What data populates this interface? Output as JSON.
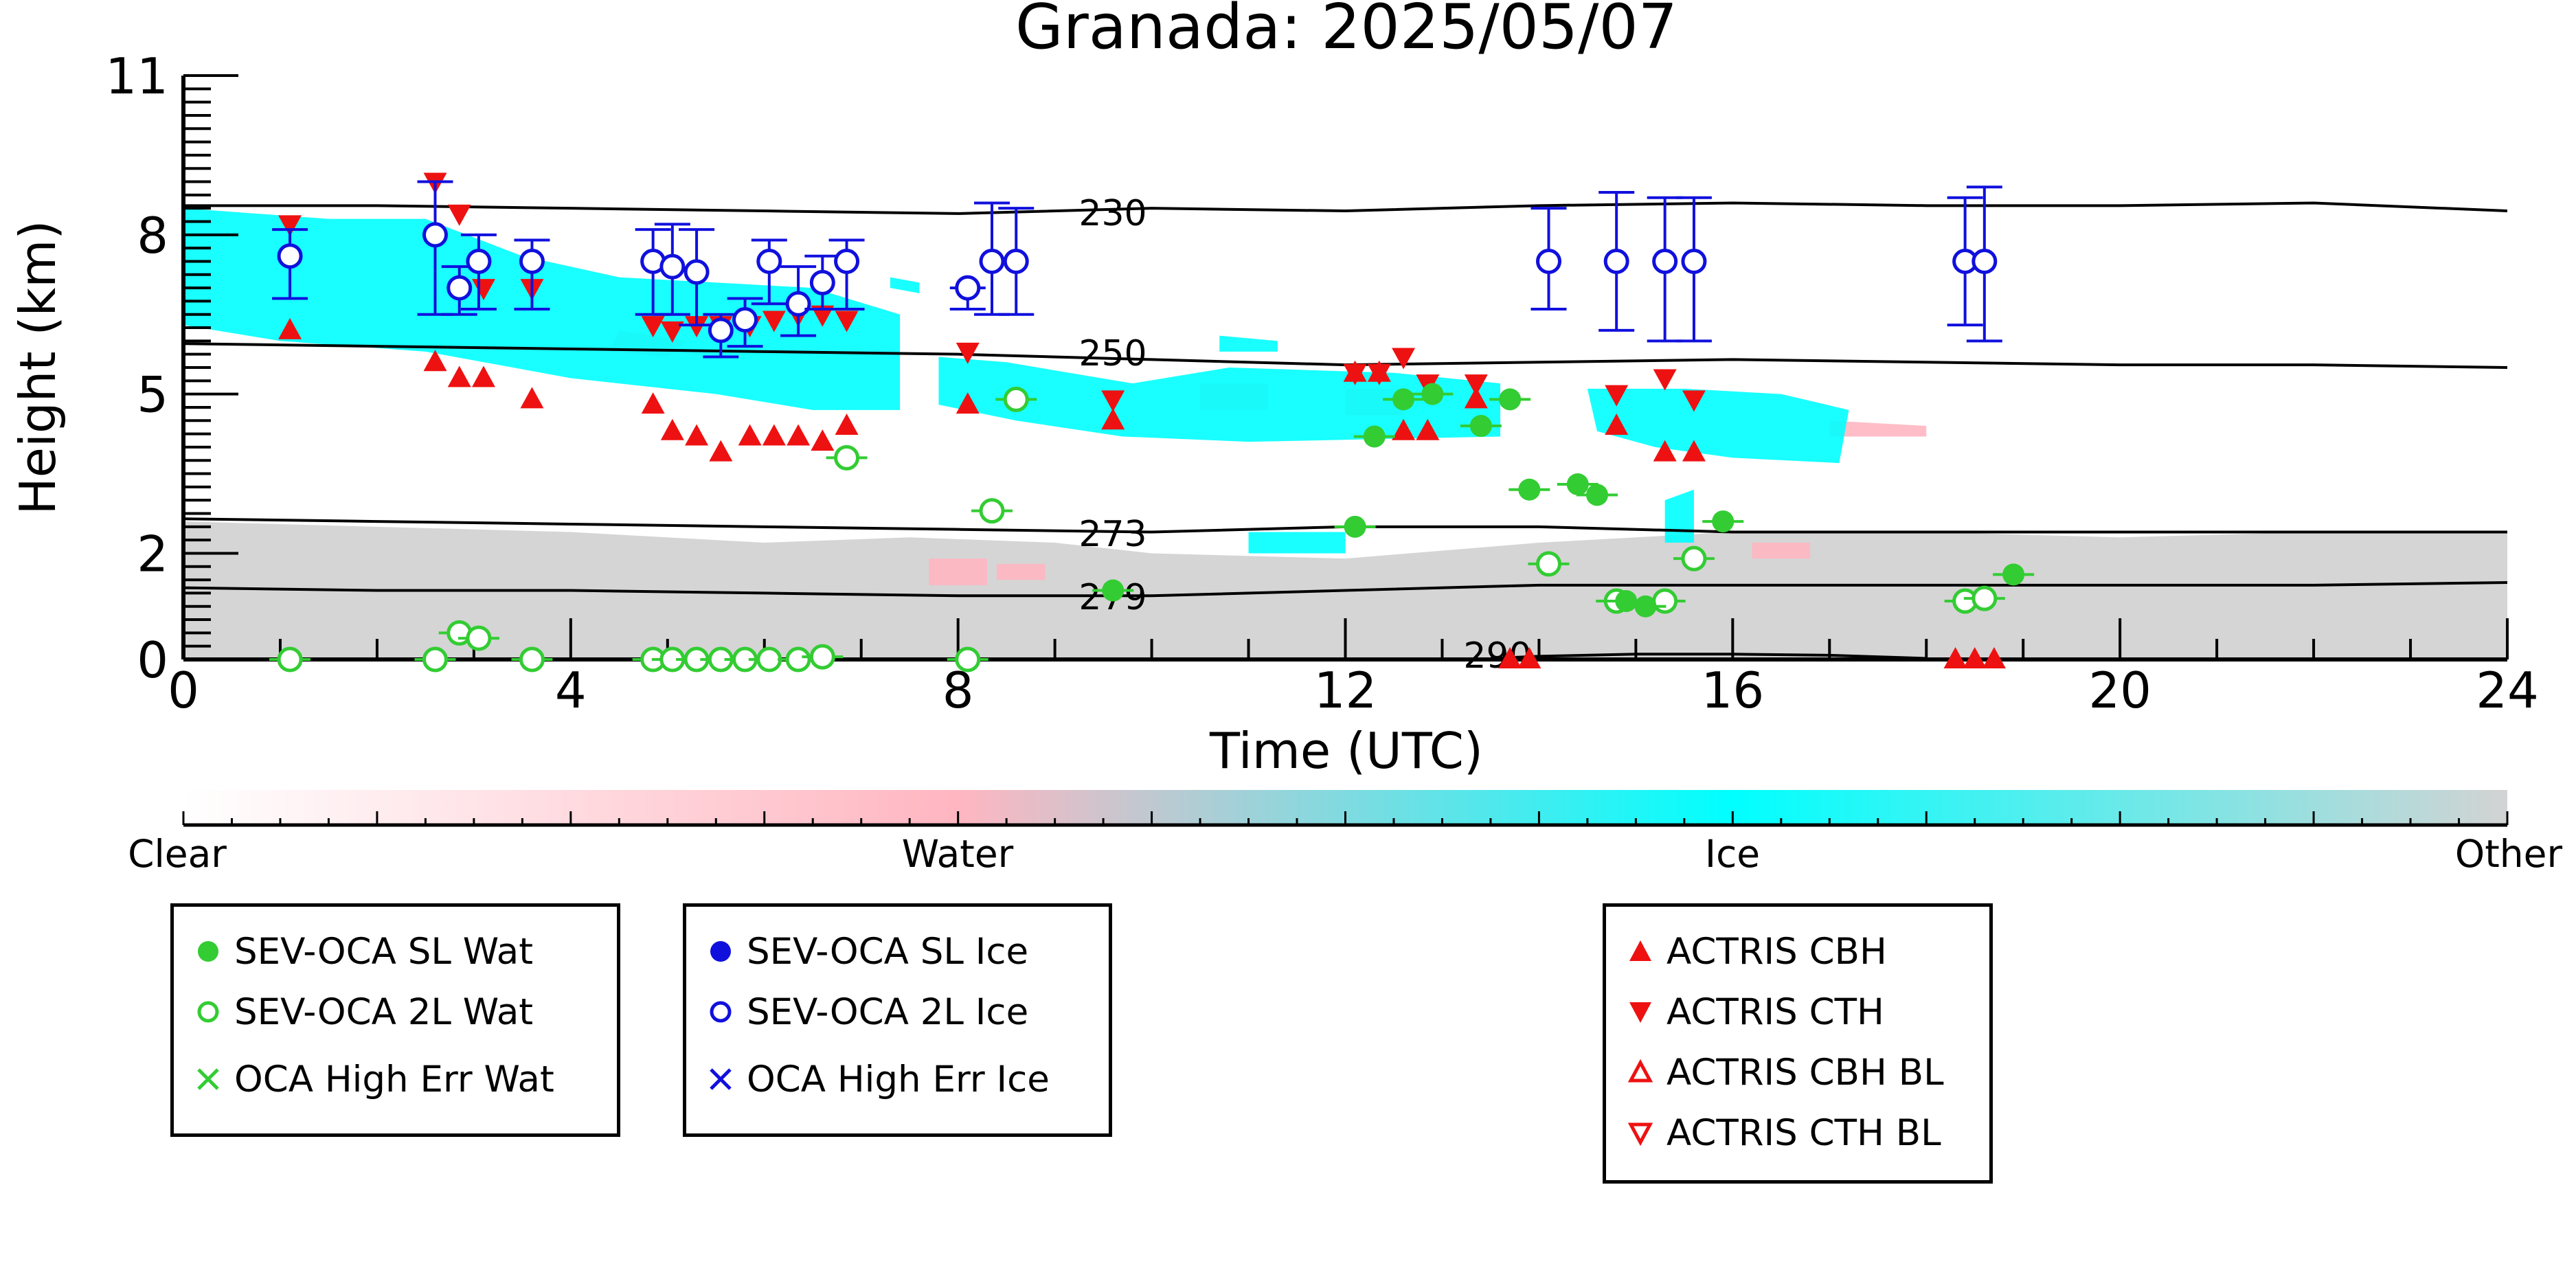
{
  "chart_data": {
    "type": "scatter",
    "title": "Granada: 2025/05/07",
    "xlabel": "Time (UTC)",
    "ylabel": "Height (km)",
    "xlim": [
      0,
      24
    ],
    "ylim": [
      0,
      11
    ],
    "x_ticks": [
      "0",
      "4",
      "8",
      "12",
      "16",
      "20",
      "24"
    ],
    "y_ticks": [
      "0",
      "2",
      "5",
      "8",
      "11"
    ],
    "colorbar": {
      "labels": [
        "Clear",
        "Water",
        "Ice",
        "Other"
      ],
      "colors": [
        "#ffffff",
        "#ffb6c1",
        "#00ffff",
        "#d3d3d3"
      ]
    },
    "contours": [
      {
        "label": "230",
        "x": [
          0,
          2,
          4,
          6,
          8,
          10,
          12,
          14,
          16,
          18,
          20,
          22,
          24
        ],
        "y": [
          8.55,
          8.55,
          8.5,
          8.45,
          8.4,
          8.5,
          8.45,
          8.55,
          8.6,
          8.55,
          8.55,
          8.6,
          8.45
        ]
      },
      {
        "label": "250",
        "x": [
          0,
          2,
          4,
          6,
          8,
          10,
          12,
          14,
          16,
          18,
          20,
          22,
          24
        ],
        "y": [
          5.95,
          5.9,
          5.85,
          5.8,
          5.75,
          5.65,
          5.55,
          5.6,
          5.65,
          5.6,
          5.55,
          5.55,
          5.5
        ]
      },
      {
        "label": "273",
        "x": [
          0,
          2,
          4,
          6,
          8,
          10,
          12,
          14,
          16,
          18,
          20,
          22,
          24
        ],
        "y": [
          2.65,
          2.6,
          2.55,
          2.5,
          2.45,
          2.4,
          2.5,
          2.5,
          2.4,
          2.4,
          2.4,
          2.4,
          2.4
        ]
      },
      {
        "label": "279",
        "x": [
          0,
          2,
          4,
          6,
          8,
          10,
          12,
          14,
          16,
          18,
          20,
          22,
          24
        ],
        "y": [
          1.35,
          1.3,
          1.3,
          1.25,
          1.2,
          1.2,
          1.3,
          1.4,
          1.4,
          1.4,
          1.4,
          1.4,
          1.45
        ]
      },
      {
        "label": "290",
        "x": [
          13.5,
          14,
          15,
          16,
          17,
          18
        ],
        "y": [
          0.02,
          0.06,
          0.1,
          0.1,
          0.08,
          0.02
        ]
      }
    ],
    "series": [
      {
        "name": "SEV-OCA SL Wat",
        "color": "#33cc33",
        "marker": "filled-circle",
        "x": [
          9.6,
          12.1,
          12.3,
          12.6,
          12.9,
          13.4,
          13.7,
          13.9,
          14.4,
          14.6,
          14.9,
          15.1,
          15.9,
          18.9
        ],
        "y": [
          1.3,
          2.5,
          4.2,
          4.9,
          5.0,
          4.4,
          4.9,
          3.2,
          3.3,
          3.1,
          1.1,
          1.0,
          2.6,
          1.6
        ]
      },
      {
        "name": "SEV-OCA 2L Wat",
        "color": "#33cc33",
        "marker": "open-circle",
        "x": [
          1.1,
          2.6,
          2.85,
          3.05,
          3.6,
          4.85,
          5.05,
          5.3,
          5.55,
          5.8,
          6.05,
          6.35,
          6.6,
          6.85,
          8.1,
          8.35,
          8.6,
          14.1,
          14.8,
          15.3,
          15.6,
          18.4,
          18.6
        ],
        "y": [
          0.0,
          0.0,
          0.5,
          0.4,
          0.0,
          0.0,
          0.0,
          0.0,
          0.0,
          0.0,
          0.0,
          0.0,
          0.05,
          3.8,
          0.0,
          2.8,
          4.9,
          1.8,
          1.1,
          1.1,
          1.9,
          1.1,
          1.15
        ]
      },
      {
        "name": "SEV-OCA SL Ice",
        "color": "#1010dd",
        "marker": "filled-circle",
        "x": [],
        "y": []
      },
      {
        "name": "SEV-OCA 2L Ice",
        "color": "#1010dd",
        "marker": "open-circle",
        "x": [
          1.1,
          2.6,
          2.85,
          3.05,
          3.6,
          4.85,
          5.05,
          5.3,
          5.55,
          5.8,
          6.05,
          6.35,
          6.6,
          6.85,
          8.1,
          8.35,
          8.6,
          14.1,
          14.8,
          15.3,
          15.6,
          18.4,
          18.6
        ],
        "y": [
          7.6,
          8.0,
          7.0,
          7.5,
          7.5,
          7.5,
          7.4,
          7.3,
          6.2,
          6.4,
          7.5,
          6.7,
          7.1,
          7.5,
          7.0,
          7.5,
          7.5,
          7.5,
          7.5,
          7.5,
          7.5,
          7.5,
          7.5
        ],
        "err_low": [
          6.8,
          6.5,
          6.5,
          6.6,
          6.6,
          6.5,
          6.5,
          6.3,
          5.7,
          5.9,
          6.7,
          6.1,
          6.6,
          6.6,
          6.6,
          6.5,
          6.5,
          6.6,
          6.2,
          6.0,
          6.0,
          6.3,
          6.0
        ],
        "err_high": [
          8.1,
          9.0,
          7.4,
          8.0,
          7.9,
          8.1,
          8.2,
          8.1,
          6.5,
          6.8,
          7.9,
          7.4,
          7.6,
          7.9,
          7.0,
          8.6,
          8.5,
          8.5,
          8.8,
          8.7,
          8.7,
          8.7,
          8.9
        ]
      },
      {
        "name": "ACTRIS CBH",
        "color": "#ee1111",
        "marker": "triangle-up",
        "x": [
          1.1,
          2.6,
          2.85,
          3.1,
          3.6,
          4.85,
          5.05,
          5.3,
          5.55,
          5.85,
          6.1,
          6.35,
          6.6,
          6.85,
          8.1,
          9.6,
          12.1,
          12.35,
          12.6,
          12.85,
          13.35,
          14.8,
          15.3,
          15.6,
          13.7,
          13.9,
          18.3,
          18.5,
          18.7
        ],
        "y": [
          6.2,
          5.6,
          5.3,
          5.3,
          4.9,
          4.8,
          4.3,
          4.2,
          3.9,
          4.2,
          4.2,
          4.2,
          4.1,
          4.4,
          4.8,
          4.5,
          5.4,
          5.4,
          4.3,
          4.3,
          4.9,
          4.4,
          3.9,
          3.9,
          0.0,
          0.0,
          0.0,
          0.0,
          0.0
        ]
      },
      {
        "name": "ACTRIS CTH",
        "color": "#ee1111",
        "marker": "triangle-down",
        "x": [
          1.1,
          2.6,
          2.85,
          3.1,
          3.6,
          4.85,
          5.05,
          5.3,
          5.55,
          5.85,
          6.1,
          6.35,
          6.6,
          6.85,
          8.1,
          9.6,
          12.1,
          12.35,
          12.6,
          12.85,
          13.35,
          14.8,
          15.3,
          15.6
        ],
        "y": [
          8.2,
          9.0,
          8.4,
          7.0,
          7.0,
          6.3,
          6.2,
          6.3,
          6.3,
          6.3,
          6.4,
          6.5,
          6.5,
          6.4,
          5.8,
          4.9,
          5.4,
          5.4,
          5.7,
          5.2,
          5.2,
          5.0,
          5.3,
          4.9
        ]
      },
      {
        "name": "OCA High Err Wat",
        "color": "#33cc33",
        "marker": "x",
        "x": [],
        "y": []
      },
      {
        "name": "OCA High Err Ice",
        "color": "#1010dd",
        "marker": "x",
        "x": [],
        "y": []
      },
      {
        "name": "ACTRIS CBH BL",
        "color": "#ee1111",
        "marker": "open-triangle-up",
        "x": [],
        "y": []
      },
      {
        "name": "ACTRIS CTH BL",
        "color": "#ee1111",
        "marker": "open-triangle-down",
        "x": [],
        "y": []
      }
    ],
    "classification_regions": [
      {
        "class": "Ice",
        "color": "#00ffff",
        "polygons": [
          [
            [
              0,
              8.5
            ],
            [
              1.5,
              8.3
            ],
            [
              2.5,
              8.3
            ],
            [
              3.5,
              7.6
            ],
            [
              4.5,
              7.2
            ],
            [
              6.5,
              7.0
            ],
            [
              7.4,
              6.5
            ],
            [
              7.4,
              4.7
            ],
            [
              6.5,
              4.7
            ],
            [
              5.5,
              5.0
            ],
            [
              4.0,
              5.3
            ],
            [
              2.5,
              5.8
            ],
            [
              1.0,
              6.0
            ],
            [
              0,
              6.3
            ]
          ],
          [
            [
              7.8,
              5.7
            ],
            [
              8.5,
              5.6
            ],
            [
              9.8,
              5.2
            ],
            [
              10.8,
              5.5
            ],
            [
              12.5,
              5.4
            ],
            [
              13.6,
              5.2
            ],
            [
              13.6,
              4.2
            ],
            [
              11.0,
              4.1
            ],
            [
              9.7,
              4.2
            ],
            [
              8.6,
              4.5
            ],
            [
              7.8,
              4.8
            ]
          ],
          [
            [
              14.5,
              5.1
            ],
            [
              15.5,
              5.1
            ],
            [
              16.5,
              5.0
            ],
            [
              17.2,
              4.7
            ],
            [
              17.1,
              3.7
            ],
            [
              16.0,
              3.8
            ],
            [
              15.2,
              4.0
            ],
            [
              14.6,
              4.3
            ]
          ],
          [
            [
              15.3,
              3.0
            ],
            [
              15.6,
              3.2
            ],
            [
              15.6,
              2.2
            ],
            [
              15.3,
              2.2
            ]
          ],
          [
            [
              11.0,
              2.4
            ],
            [
              12.0,
              2.4
            ],
            [
              12.0,
              2.0
            ],
            [
              11.0,
              2.0
            ]
          ],
          [
            [
              7.3,
              7.2
            ],
            [
              7.6,
              7.1
            ],
            [
              7.6,
              6.9
            ],
            [
              7.3,
              7.0
            ]
          ],
          [
            [
              10.7,
              6.1
            ],
            [
              11.3,
              6.0
            ],
            [
              11.3,
              5.8
            ],
            [
              10.7,
              5.8
            ]
          ]
        ]
      },
      {
        "class": "Water",
        "color": "#ffb6c1",
        "polygons": [
          [
            [
              4.5,
              6.2
            ],
            [
              5.2,
              6.0
            ],
            [
              5.0,
              5.7
            ],
            [
              4.4,
              5.8
            ]
          ],
          [
            [
              7.7,
              1.9
            ],
            [
              8.3,
              1.9
            ],
            [
              8.3,
              1.4
            ],
            [
              7.7,
              1.4
            ]
          ],
          [
            [
              8.4,
              1.8
            ],
            [
              8.9,
              1.8
            ],
            [
              8.9,
              1.5
            ],
            [
              8.4,
              1.5
            ]
          ],
          [
            [
              10.5,
              5.2
            ],
            [
              11.2,
              5.2
            ],
            [
              11.2,
              4.7
            ],
            [
              10.5,
              4.7
            ]
          ],
          [
            [
              12.0,
              5.1
            ],
            [
              12.6,
              5.1
            ],
            [
              12.6,
              4.6
            ],
            [
              12.0,
              4.6
            ]
          ],
          [
            [
              17.0,
              4.5
            ],
            [
              18.0,
              4.4
            ],
            [
              18.0,
              4.2
            ],
            [
              17.0,
              4.2
            ]
          ],
          [
            [
              16.2,
              2.2
            ],
            [
              16.8,
              2.2
            ],
            [
              16.8,
              1.9
            ],
            [
              16.2,
              1.9
            ]
          ]
        ]
      },
      {
        "class": "Other",
        "color": "#d3d3d3",
        "polygons": [
          [
            [
              0,
              2.6
            ],
            [
              2,
              2.5
            ],
            [
              4,
              2.4
            ],
            [
              6,
              2.2
            ],
            [
              7.5,
              2.3
            ],
            [
              9,
              2.2
            ],
            [
              10,
              2.0
            ],
            [
              12,
              1.9
            ],
            [
              14,
              2.2
            ],
            [
              16,
              2.4
            ],
            [
              18,
              2.4
            ],
            [
              20,
              2.3
            ],
            [
              22,
              2.4
            ],
            [
              24,
              2.4
            ],
            [
              24,
              0
            ],
            [
              0,
              0
            ]
          ]
        ]
      }
    ]
  },
  "contour_labels": [
    "230",
    "250",
    "273",
    "279",
    "290"
  ],
  "legend_groups": [
    {
      "entries": [
        {
          "label": "SEV-OCA SL Wat",
          "marker": "filled-circle",
          "color": "#33cc33"
        },
        {
          "label": "SEV-OCA 2L Wat",
          "marker": "open-circle",
          "color": "#33cc33"
        },
        {
          "label": "OCA High Err Wat",
          "marker": "x",
          "color": "#33cc33"
        }
      ]
    },
    {
      "entries": [
        {
          "label": "SEV-OCA SL Ice",
          "marker": "filled-circle",
          "color": "#1010dd"
        },
        {
          "label": "SEV-OCA 2L Ice",
          "marker": "open-circle",
          "color": "#1010dd"
        },
        {
          "label": "OCA High Err Ice",
          "marker": "x",
          "color": "#1010dd"
        }
      ]
    },
    {
      "entries": [
        {
          "label": "ACTRIS CBH",
          "marker": "triangle-up",
          "color": "#ee1111"
        },
        {
          "label": "ACTRIS CTH",
          "marker": "triangle-down",
          "color": "#ee1111"
        },
        {
          "label": "ACTRIS CBH BL",
          "marker": "open-triangle-up",
          "color": "#ee1111"
        },
        {
          "label": "ACTRIS CTH BL",
          "marker": "open-triangle-down",
          "color": "#ee1111"
        }
      ]
    }
  ]
}
